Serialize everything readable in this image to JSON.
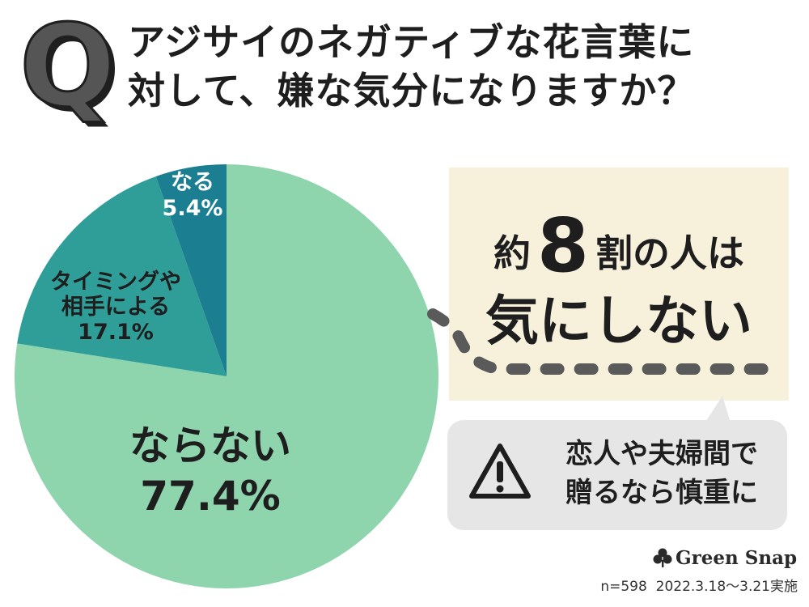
{
  "title": {
    "q_letter": "Q",
    "line1": "アジサイのネガティブな花言葉に",
    "line2": "対して、嫌な気分になりますか？"
  },
  "chart_data": {
    "type": "pie",
    "slices": [
      {
        "label_lines": [
          "ならない"
        ],
        "value": 77.4,
        "value_label": "77.4%",
        "color": "#8ed4ad"
      },
      {
        "label_lines": [
          "タイミングや",
          "相手による"
        ],
        "value": 17.1,
        "value_label": "17.1%",
        "color": "#2f9e99"
      },
      {
        "label_lines": [
          "なる"
        ],
        "value": 5.4,
        "value_label": "5.4%",
        "color": "#1b7f91"
      }
    ],
    "start": "12 o'clock",
    "direction": "clockwise"
  },
  "callout": {
    "prefix": "約",
    "number": "8",
    "suffix": "割の人は",
    "line2": "気にしない"
  },
  "warning": {
    "icon": "warning-triangle-icon",
    "line1": "恋人や夫婦間で",
    "line2": "贈るなら慎重に"
  },
  "brand": {
    "icon": "clover-logo-icon",
    "name": "Green Snap"
  },
  "footnote": {
    "sample": "n=598",
    "period": "2022.3.18〜3.21実施"
  }
}
